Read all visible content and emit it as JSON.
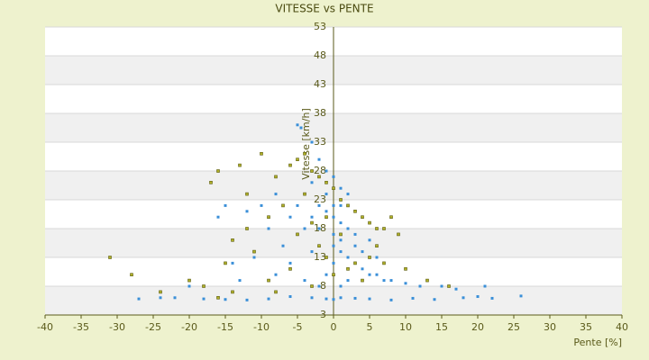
{
  "chart_data": {
    "type": "scatter",
    "title": "VITESSE vs PENTE",
    "x_label": "Pente [%]",
    "y_label": "Vitesse [km/h]",
    "xlim": [
      -40,
      40
    ],
    "xticks": [
      -40,
      -35,
      -30,
      -25,
      -20,
      -15,
      -10,
      -5,
      0,
      5,
      10,
      15,
      20,
      25,
      30,
      35,
      40
    ],
    "ylim": [
      3,
      53
    ],
    "yticks": [
      3,
      8,
      13,
      18,
      23,
      28,
      33,
      38,
      43,
      48,
      53
    ],
    "grid": true,
    "series": [
      {
        "color": "#3a8fd8",
        "x": [
          -5,
          -4.5,
          -3,
          -2,
          -1,
          0,
          1,
          2,
          -2,
          -1,
          0,
          1,
          2,
          3,
          0,
          1,
          2,
          3,
          4,
          5,
          6,
          7,
          8,
          10,
          12,
          15,
          17,
          21,
          -3,
          -4,
          -3,
          -4,
          -5,
          -6,
          -8,
          -10,
          -12,
          -15,
          -16,
          -9,
          -7,
          -11,
          -6,
          -3,
          -1,
          0,
          1,
          2,
          3,
          4,
          5,
          6,
          -2,
          -4,
          -8,
          -13,
          -20,
          -22,
          -18,
          -15,
          -12,
          -9,
          -6,
          -3,
          -1,
          0,
          1,
          3,
          5,
          8,
          11,
          14,
          18,
          20,
          22,
          26,
          -27,
          -24,
          -14,
          -1,
          0,
          1,
          -2,
          0,
          1
        ],
        "values": [
          36,
          35.5,
          33,
          30,
          28,
          27,
          25,
          24,
          22,
          21,
          20,
          19,
          18,
          17,
          15,
          14,
          13,
          12,
          11,
          10,
          10,
          9,
          9,
          8.5,
          8,
          8,
          7.5,
          8,
          26,
          24,
          20,
          18,
          22,
          20,
          24,
          22,
          21,
          22,
          20,
          18,
          15,
          13,
          12,
          14,
          10,
          12,
          8,
          9,
          15,
          14,
          16,
          13,
          8,
          9,
          10,
          9,
          8,
          6,
          5.8,
          5.7,
          5.6,
          5.8,
          6.2,
          6,
          5.8,
          5.7,
          6,
          5.9,
          5.8,
          5.6,
          5.9,
          5.7,
          6,
          6.2,
          5.9,
          6.3,
          5.8,
          6,
          12,
          24,
          22,
          22,
          18,
          17,
          16
        ]
      },
      {
        "color": "#b0b028",
        "x": [
          -31,
          -28,
          -24,
          -20,
          -17,
          -16,
          -13,
          -10,
          -8,
          -6,
          -5,
          -4,
          -3,
          -2,
          -1,
          0,
          1,
          2,
          3,
          4,
          5,
          6,
          7,
          8,
          9,
          6,
          5,
          7,
          10,
          -12,
          -14,
          -9,
          -7,
          -11,
          -5,
          -3,
          -2,
          -1,
          -6,
          -9,
          -14,
          -16,
          -8,
          -3,
          0,
          2,
          4,
          -12,
          -15,
          -18,
          13,
          16,
          -4,
          -1,
          1,
          3
        ],
        "values": [
          13,
          10,
          7,
          9,
          26,
          28,
          29,
          31,
          27,
          29,
          30,
          31,
          28,
          27,
          26,
          25,
          23,
          22,
          21,
          20,
          19,
          18,
          18,
          20,
          17,
          15,
          13,
          12,
          11,
          18,
          16,
          20,
          22,
          14,
          17,
          19,
          15,
          20,
          11,
          9,
          7,
          6,
          7,
          8,
          10,
          11,
          9,
          24,
          12,
          8,
          9,
          8,
          24,
          13,
          17,
          12
        ]
      }
    ]
  }
}
